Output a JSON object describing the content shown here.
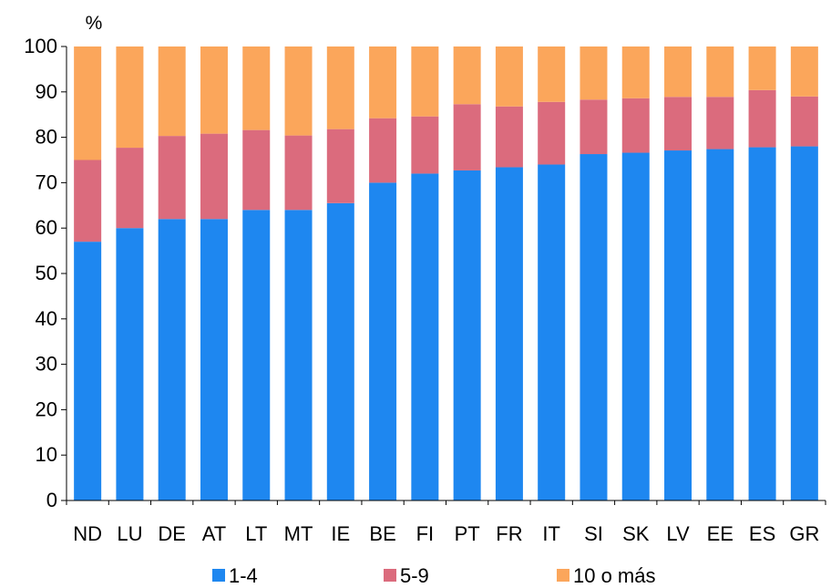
{
  "chart_data": {
    "type": "bar",
    "stacked": true,
    "ylabel": "%",
    "ylim": [
      0,
      100
    ],
    "yticks": [
      0,
      10,
      20,
      30,
      40,
      50,
      60,
      70,
      80,
      90,
      100
    ],
    "grid": false,
    "legend_position": "bottom",
    "categories": [
      "ND",
      "LU",
      "DE",
      "AT",
      "LT",
      "MT",
      "IE",
      "BE",
      "FI",
      "PT",
      "FR",
      "IT",
      "SI",
      "SK",
      "LV",
      "EE",
      "ES",
      "GR"
    ],
    "series": [
      {
        "name": "1-4",
        "color": "#1E87F0",
        "values": [
          57,
          60,
          62,
          62,
          64,
          64,
          65.5,
          70,
          72,
          72.7,
          73.4,
          74,
          76.3,
          76.6,
          77.1,
          77.4,
          77.8,
          78
        ]
      },
      {
        "name": "5-9",
        "color": "#DB6B7D",
        "values": [
          18,
          17.7,
          18.3,
          18.8,
          17.6,
          16.4,
          16.3,
          14.2,
          12.6,
          14.6,
          13.4,
          13.8,
          12,
          12,
          11.8,
          11.5,
          12.6,
          11
        ]
      },
      {
        "name": "10 o más",
        "color": "#FBA65B",
        "values": [
          25,
          22.3,
          19.7,
          19.2,
          18.4,
          19.6,
          18.2,
          15.8,
          15.4,
          12.7,
          13.2,
          12.2,
          11.7,
          11.4,
          11.1,
          11.1,
          9.6,
          11
        ]
      }
    ]
  }
}
